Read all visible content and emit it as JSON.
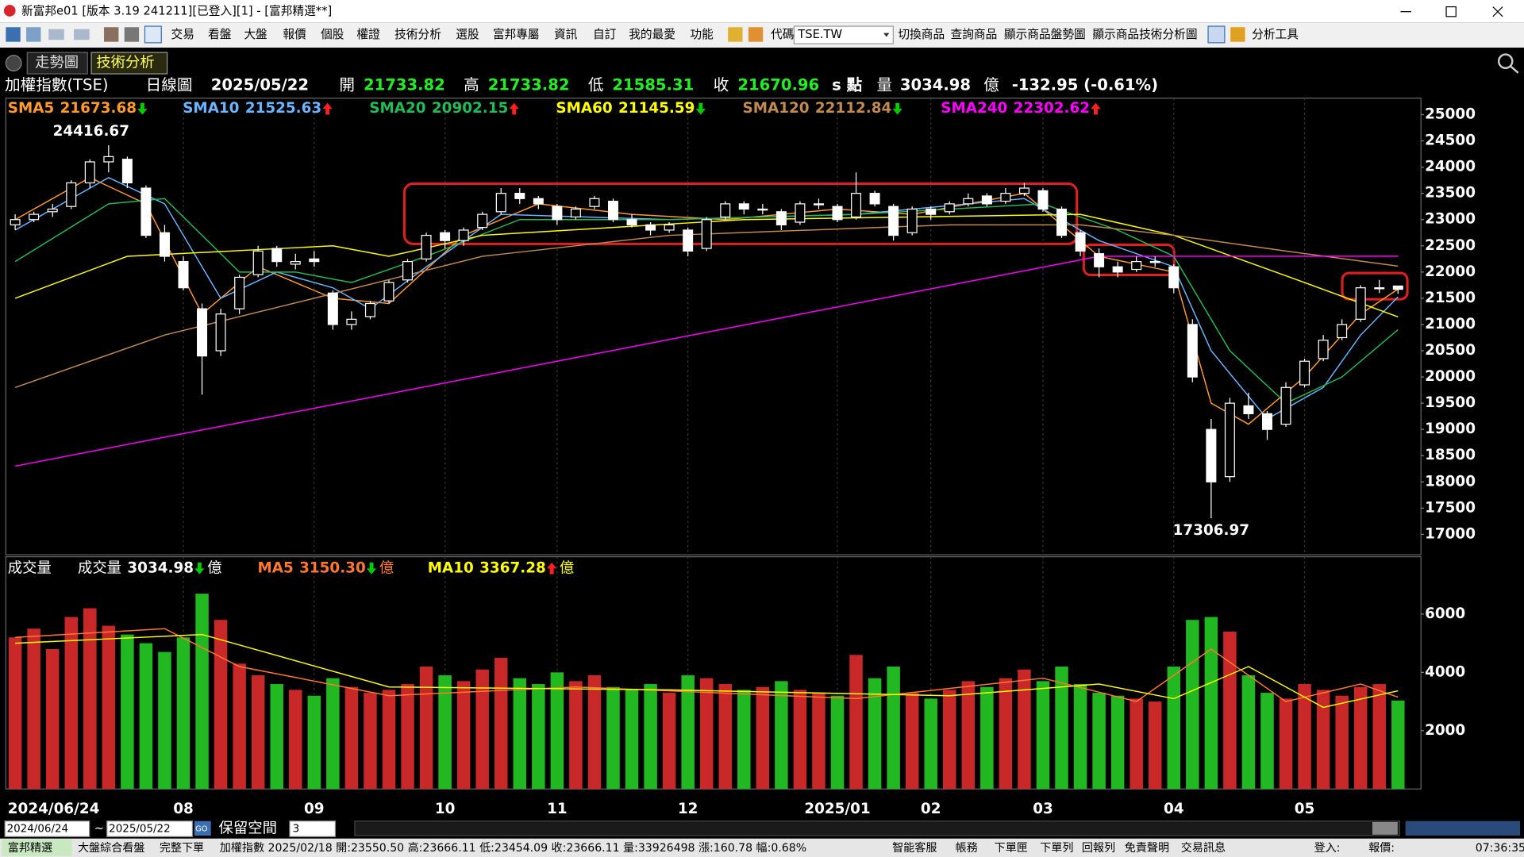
{
  "window": {
    "title": "新富邦e01 [版本 3.19 241211][已登入][1] - [富邦精選**]"
  },
  "toolbar": {
    "menus": [
      "交易",
      "看盤",
      "大盤",
      "報價",
      "個股",
      "權證",
      "技術分析",
      "選股",
      "富邦專屬",
      "資訊",
      "自訂",
      "我的最愛",
      "功能"
    ],
    "code_label": "代碼",
    "code_value": "TSE.TW",
    "links": [
      "切換商品",
      "查詢商品",
      "顯示商品盤勢圖",
      "顯示商品技術分析圖"
    ],
    "tools": "分析工具"
  },
  "tabs": [
    "走勢圖",
    "技術分析"
  ],
  "quote": {
    "name": "加權指數(TSE)",
    "period": "日線圖",
    "date": "2025/05/22",
    "open_label": "開",
    "open": "21733.82",
    "high_label": "高",
    "high": "21733.82",
    "low_label": "低",
    "low": "21585.31",
    "close_label": "收",
    "close": "21670.96",
    "unit": "s 點",
    "volume_label": "量",
    "volume": "3034.98",
    "volume_unit": "億",
    "change": "-132.95 (-0.61%)"
  },
  "chart_data": {
    "type": "candlestick",
    "categories": [
      "2024/06/24",
      null,
      null,
      null,
      null,
      null,
      null,
      null,
      null,
      "08",
      null,
      null,
      null,
      null,
      null,
      null,
      "09",
      null,
      null,
      null,
      null,
      null,
      null,
      "10",
      null,
      null,
      null,
      null,
      null,
      "11",
      null,
      null,
      null,
      null,
      null,
      null,
      "12",
      null,
      null,
      null,
      null,
      null,
      null,
      null,
      "2025/01",
      null,
      null,
      null,
      null,
      "02",
      null,
      null,
      null,
      null,
      null,
      "03",
      null,
      null,
      null,
      null,
      null,
      null,
      "04",
      null,
      null,
      null,
      null,
      null,
      null,
      "05",
      null,
      null,
      null,
      null,
      null
    ],
    "ohlc": [
      [
        22900,
        23100,
        22800,
        23000
      ],
      [
        23000,
        23150,
        22950,
        23100
      ],
      [
        23150,
        23300,
        23050,
        23200
      ],
      [
        23250,
        23750,
        23200,
        23700
      ],
      [
        23700,
        24150,
        23600,
        24100
      ],
      [
        24100,
        24416.67,
        23900,
        24200
      ],
      [
        24150,
        24200,
        23600,
        23700
      ],
      [
        23600,
        23650,
        22650,
        22700
      ],
      [
        22750,
        22900,
        22200,
        22300
      ],
      [
        22200,
        22300,
        21650,
        21700
      ],
      [
        21300,
        21400,
        19662,
        20400
      ],
      [
        20500,
        21300,
        20400,
        21200
      ],
      [
        21300,
        21950,
        21200,
        21900
      ],
      [
        21950,
        22500,
        21900,
        22400
      ],
      [
        22450,
        22500,
        22100,
        22200
      ],
      [
        22150,
        22350,
        22050,
        22200
      ],
      [
        22250,
        22400,
        22100,
        22200
      ],
      [
        21600,
        21650,
        20900,
        21000
      ],
      [
        21000,
        21250,
        20900,
        21100
      ],
      [
        21150,
        21450,
        21100,
        21400
      ],
      [
        21450,
        21850,
        21400,
        21800
      ],
      [
        21850,
        22250,
        21800,
        22200
      ],
      [
        22250,
        22750,
        22200,
        22700
      ],
      [
        22750,
        22800,
        22450,
        22600
      ],
      [
        22600,
        22850,
        22500,
        22800
      ],
      [
        22850,
        23150,
        22800,
        23100
      ],
      [
        23150,
        23600,
        23100,
        23500
      ],
      [
        23500,
        23600,
        23300,
        23400
      ],
      [
        23400,
        23450,
        23200,
        23300
      ],
      [
        23250,
        23300,
        22900,
        23000
      ],
      [
        23050,
        23250,
        23000,
        23200
      ],
      [
        23250,
        23450,
        23200,
        23400
      ],
      [
        23350,
        23400,
        22950,
        23000
      ],
      [
        23000,
        23100,
        22850,
        22900
      ],
      [
        22900,
        22950,
        22700,
        22800
      ],
      [
        22800,
        22950,
        22750,
        22900
      ],
      [
        22800,
        22850,
        22300,
        22400
      ],
      [
        22450,
        23050,
        22400,
        23000
      ],
      [
        23050,
        23350,
        23000,
        23300
      ],
      [
        23300,
        23350,
        23100,
        23200
      ],
      [
        23200,
        23300,
        23100,
        23200
      ],
      [
        23150,
        23200,
        22800,
        22900
      ],
      [
        22950,
        23350,
        22900,
        23300
      ],
      [
        23300,
        23400,
        23200,
        23300
      ],
      [
        23250,
        23300,
        22950,
        23000
      ],
      [
        23050,
        23900,
        23000,
        23500
      ],
      [
        23500,
        23550,
        23250,
        23300
      ],
      [
        23250,
        23300,
        22600,
        22700
      ],
      [
        22750,
        23250,
        22700,
        23200
      ],
      [
        23200,
        23250,
        23000,
        23100
      ],
      [
        23150,
        23350,
        23100,
        23300
      ],
      [
        23300,
        23500,
        23250,
        23400
      ],
      [
        23450,
        23500,
        23250,
        23300
      ],
      [
        23350,
        23600,
        23300,
        23500
      ],
      [
        23500,
        23700,
        23450,
        23600
      ],
      [
        23550,
        23600,
        23150,
        23200
      ],
      [
        23200,
        23250,
        22650,
        22700
      ],
      [
        22750,
        22800,
        22300,
        22400
      ],
      [
        22350,
        22450,
        21900,
        22100
      ],
      [
        22100,
        22200,
        21900,
        22000
      ],
      [
        22050,
        22300,
        22000,
        22200
      ],
      [
        22200,
        22300,
        22100,
        22200
      ],
      [
        22100,
        22150,
        21600,
        21700
      ],
      [
        21000,
        21100,
        19900,
        20000
      ],
      [
        19000,
        19200,
        17306.97,
        18000
      ],
      [
        18100,
        19600,
        18000,
        19500
      ],
      [
        19450,
        19700,
        19200,
        19300
      ],
      [
        19300,
        19350,
        18800,
        19000
      ],
      [
        19100,
        19900,
        19050,
        19800
      ],
      [
        19850,
        20350,
        19800,
        20300
      ],
      [
        20350,
        20800,
        20300,
        20700
      ],
      [
        20750,
        21100,
        20700,
        21000
      ],
      [
        21100,
        21750,
        21050,
        21700
      ],
      [
        21700,
        21850,
        21600,
        21700
      ],
      [
        21733.82,
        21733.82,
        21585.31,
        21670.96
      ]
    ],
    "candle_color": "#ffffff",
    "max_label": "24416.67",
    "min_label": "17306.97",
    "ylim": [
      16610,
      25315
    ],
    "yticks": [
      17000,
      17500,
      18000,
      18500,
      19000,
      19500,
      20000,
      20500,
      21000,
      21500,
      22000,
      22500,
      23000,
      23500,
      24000,
      24500,
      25000
    ],
    "grid": "vertical",
    "trend_colors": {
      "up": "#ff2020",
      "down": "#00cc00"
    },
    "series": [
      {
        "name": "SMA5",
        "color": "#ff9a30",
        "label_value": "21673.68",
        "trend": "down",
        "points": [
          [
            0,
            23000
          ],
          [
            4,
            23800
          ],
          [
            7,
            23300
          ],
          [
            10,
            21200
          ],
          [
            13,
            22100
          ],
          [
            17,
            21500
          ],
          [
            20,
            21400
          ],
          [
            24,
            22700
          ],
          [
            28,
            23300
          ],
          [
            33,
            23100
          ],
          [
            38,
            23000
          ],
          [
            44,
            23200
          ],
          [
            48,
            23100
          ],
          [
            54,
            23500
          ],
          [
            58,
            22300
          ],
          [
            62,
            22000
          ],
          [
            64,
            19500
          ],
          [
            66,
            19100
          ],
          [
            69,
            20000
          ],
          [
            72,
            21200
          ],
          [
            74,
            21673.68
          ]
        ]
      },
      {
        "name": "SMA10",
        "color": "#6cb4ff",
        "label_value": "21525.63",
        "trend": "up",
        "points": [
          [
            0,
            22800
          ],
          [
            5,
            23800
          ],
          [
            8,
            23300
          ],
          [
            11,
            21500
          ],
          [
            14,
            22000
          ],
          [
            17,
            21700
          ],
          [
            19,
            21300
          ],
          [
            22,
            22100
          ],
          [
            26,
            23100
          ],
          [
            35,
            23000
          ],
          [
            45,
            23100
          ],
          [
            54,
            23400
          ],
          [
            58,
            22600
          ],
          [
            62,
            22100
          ],
          [
            64,
            20500
          ],
          [
            67,
            19200
          ],
          [
            70,
            19800
          ],
          [
            72,
            20800
          ],
          [
            74,
            21525.63
          ]
        ]
      },
      {
        "name": "SMA20",
        "color": "#22bb55",
        "label_value": "20902.15",
        "trend": "up",
        "points": [
          [
            0,
            22200
          ],
          [
            5,
            23300
          ],
          [
            8,
            23400
          ],
          [
            12,
            22000
          ],
          [
            15,
            22000
          ],
          [
            18,
            21800
          ],
          [
            22,
            22300
          ],
          [
            27,
            23000
          ],
          [
            35,
            23000
          ],
          [
            45,
            23100
          ],
          [
            55,
            23300
          ],
          [
            59,
            22800
          ],
          [
            62,
            22300
          ],
          [
            65,
            20500
          ],
          [
            68,
            19500
          ],
          [
            71,
            20000
          ],
          [
            74,
            20902.15
          ]
        ]
      },
      {
        "name": "SMA60",
        "color": "#ffff00",
        "label_value": "21145.59",
        "trend": "down",
        "points": [
          [
            0,
            21500
          ],
          [
            6,
            22300
          ],
          [
            17,
            22500
          ],
          [
            20,
            22300
          ],
          [
            25,
            22700
          ],
          [
            39,
            23000
          ],
          [
            57,
            23100
          ],
          [
            62,
            22700
          ],
          [
            69,
            21800
          ],
          [
            74,
            21145.59
          ]
        ]
      },
      {
        "name": "SMA120",
        "color": "#c08a50",
        "label_value": "22112.84",
        "trend": "down",
        "points": [
          [
            0,
            19800
          ],
          [
            8,
            20800
          ],
          [
            16,
            21500
          ],
          [
            25,
            22300
          ],
          [
            35,
            22700
          ],
          [
            50,
            22900
          ],
          [
            57,
            22900
          ],
          [
            62,
            22700
          ],
          [
            68,
            22400
          ],
          [
            74,
            22112.84
          ]
        ]
      },
      {
        "name": "SMA240",
        "color": "#ff00ff",
        "label_value": "22302.62",
        "trend": "up",
        "points": [
          [
            0,
            18300
          ],
          [
            58,
            22300
          ],
          [
            74,
            22302.62
          ]
        ]
      }
    ],
    "volume": {
      "panel_title": "成交量",
      "name": "成交量",
      "label_value": "3034.98",
      "trend": "down",
      "unit": "億",
      "up_color": "#c82828",
      "down_color": "#22b822",
      "values": [
        5200,
        5500,
        4800,
        5900,
        6200,
        5600,
        5300,
        5000,
        4700,
        5200,
        6700,
        5800,
        4300,
        3900,
        3600,
        3400,
        3200,
        3800,
        3500,
        3300,
        3400,
        3600,
        4200,
        3900,
        3700,
        4100,
        4500,
        3800,
        3600,
        4000,
        3700,
        3900,
        3500,
        3400,
        3600,
        3300,
        3900,
        3800,
        3600,
        3400,
        3500,
        3700,
        3400,
        3300,
        3200,
        4600,
        3800,
        4200,
        3300,
        3100,
        3400,
        3700,
        3500,
        3800,
        4100,
        3700,
        4200,
        3600,
        3300,
        3200,
        3100,
        3000,
        4200,
        5800,
        5900,
        5400,
        3900,
        3300,
        3100,
        3600,
        3400,
        3200,
        3500,
        3600,
        3034.98
      ],
      "ylim": [
        0,
        7967
      ],
      "yticks": [
        2000,
        4000,
        6000
      ],
      "series": [
        {
          "name": "MA5",
          "color": "#ff7a30",
          "label_value": "3150.30",
          "trend": "down",
          "points": [
            [
              0,
              5200
            ],
            [
              8,
              5500
            ],
            [
              12,
              4200
            ],
            [
              20,
              3200
            ],
            [
              30,
              3500
            ],
            [
              45,
              3100
            ],
            [
              55,
              3800
            ],
            [
              60,
              3000
            ],
            [
              64,
              4800
            ],
            [
              68,
              3000
            ],
            [
              72,
              3600
            ],
            [
              74,
              3150.3
            ]
          ]
        },
        {
          "name": "MA10",
          "color": "#ffff00",
          "label_value": "3367.28",
          "trend": "up",
          "points": [
            [
              0,
              5000
            ],
            [
              10,
              5300
            ],
            [
              20,
              3500
            ],
            [
              35,
              3400
            ],
            [
              50,
              3200
            ],
            [
              58,
              3600
            ],
            [
              62,
              3100
            ],
            [
              66,
              4200
            ],
            [
              70,
              2800
            ],
            [
              74,
              3367.28
            ]
          ]
        }
      ]
    }
  },
  "bottom_bar": {
    "from": "2024/06/24",
    "separator": "~",
    "to": "2025/05/22",
    "go": "GO",
    "space_label": "保留空間",
    "space_value": "3"
  },
  "status_bar": {
    "left": [
      "富邦精選",
      "大盤綜合看盤",
      "完整下單"
    ],
    "ticker": "加權指數 2025/02/18 開:23550.50 高:23666.11 低:23454.09 收:23666.11 量:33926498 漲:160.78 幅:0.68%",
    "right": [
      "智能客服",
      "帳務",
      "下單匣",
      "下單列",
      "回報列",
      "免責聲明",
      "交易訊息"
    ],
    "login": "登入:",
    "quote": "報價:",
    "time": "07:36:35"
  }
}
